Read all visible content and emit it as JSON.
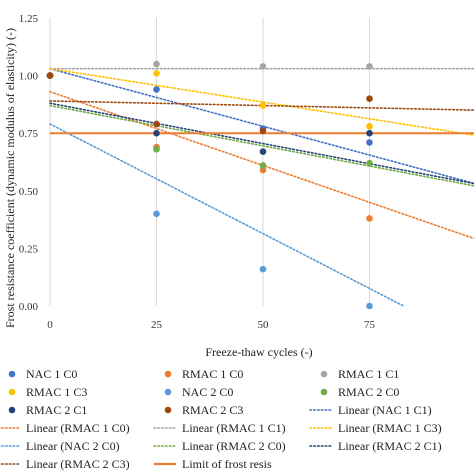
{
  "chart_data": {
    "type": "scatter",
    "xlabel": "Freeze-thaw cycles (-)",
    "ylabel": "Frost resistance coefficient (dynamic modulus of elasticity) (-)",
    "xlim": [
      0,
      100
    ],
    "ylim": [
      0,
      1.25
    ],
    "x_ticks": [
      "0",
      "25",
      "50",
      "75"
    ],
    "y_ticks": [
      "0.00",
      "0.25",
      "0.50",
      "0.75",
      "1.00",
      "1.25"
    ],
    "grid": "vertical",
    "series": [
      {
        "name": "NAC 1 C0",
        "color": "#4472c4",
        "x": [
          0,
          25,
          50,
          75
        ],
        "y": [
          1.0,
          0.94,
          0.77,
          0.71
        ]
      },
      {
        "name": "RMAC 1 C0",
        "color": "#ed7d31",
        "x": [
          0,
          25,
          50,
          75
        ],
        "y": [
          1.0,
          0.69,
          0.59,
          0.38
        ]
      },
      {
        "name": "RMAC 1 C1",
        "color": "#a5a5a5",
        "x": [
          0,
          25,
          50,
          75
        ],
        "y": [
          1.0,
          1.05,
          1.04,
          1.04
        ]
      },
      {
        "name": "RMAC 1 C3",
        "color": "#ffc000",
        "x": [
          0,
          25,
          50,
          75
        ],
        "y": [
          1.0,
          1.01,
          0.87,
          0.78
        ]
      },
      {
        "name": "NAC 2 C0",
        "color": "#5b9bd5",
        "x": [
          0,
          25,
          50,
          75
        ],
        "y": [
          1.0,
          0.4,
          0.16,
          0.0
        ]
      },
      {
        "name": "RMAC 2 C0",
        "color": "#70ad47",
        "x": [
          0,
          25,
          50,
          75
        ],
        "y": [
          1.0,
          0.68,
          0.61,
          0.62
        ]
      },
      {
        "name": "RMAC 2 C1",
        "color": "#264478",
        "x": [
          0,
          25,
          50,
          75
        ],
        "y": [
          1.0,
          0.75,
          0.67,
          0.75
        ]
      },
      {
        "name": "RMAC 2 C3",
        "color": "#9e480e",
        "x": [
          0,
          25,
          50,
          75
        ],
        "y": [
          1.0,
          0.79,
          0.76,
          0.9
        ]
      }
    ],
    "trendlines": [
      {
        "name": "Linear (NAC 1 C1)",
        "color": "#4472c4",
        "start": [
          0,
          1.03
        ],
        "end": [
          100,
          0.53
        ]
      },
      {
        "name": "Linear (RMAC 1 C0)",
        "color": "#ed7d31",
        "start": [
          0,
          0.93
        ],
        "end": [
          100,
          0.29
        ]
      },
      {
        "name": "Linear (RMAC 1 C1)",
        "color": "#a5a5a5",
        "start": [
          0,
          1.03
        ],
        "end": [
          100,
          1.03
        ]
      },
      {
        "name": "Linear (RMAC 1 C3)",
        "color": "#ffc000",
        "start": [
          0,
          1.03
        ],
        "end": [
          100,
          0.74
        ]
      },
      {
        "name": "Linear (NAC 2 C0)",
        "color": "#5b9bd5",
        "start": [
          0,
          0.79
        ],
        "end": [
          83,
          0.0
        ]
      },
      {
        "name": "Linear (RMAC 2 C0)",
        "color": "#70ad47",
        "start": [
          0,
          0.87
        ],
        "end": [
          100,
          0.52
        ]
      },
      {
        "name": "Linear (RMAC 2 C1)",
        "color": "#264478",
        "start": [
          0,
          0.88
        ],
        "end": [
          100,
          0.53
        ]
      },
      {
        "name": "Linear (RMAC 2 C3)",
        "color": "#9e480e",
        "start": [
          0,
          0.89
        ],
        "end": [
          100,
          0.85
        ]
      }
    ],
    "threshold": {
      "name": "Limit of frost resis",
      "color": "#ed7d31",
      "y": 0.75
    },
    "legend": {
      "placement": "bottom",
      "rows": [
        [
          {
            "label": "NAC 1 C0",
            "kind": "dot",
            "color": "#4472c4"
          },
          {
            "label": "RMAC 1 C0",
            "kind": "dot",
            "color": "#ed7d31"
          },
          {
            "label": "RMAC 1 C1",
            "kind": "dot",
            "color": "#a5a5a5"
          }
        ],
        [
          {
            "label": "RMAC 1 C3",
            "kind": "dot",
            "color": "#ffc000"
          },
          {
            "label": "NAC 2 C0",
            "kind": "dot",
            "color": "#5b9bd5"
          },
          {
            "label": "RMAC 2 C0",
            "kind": "dot",
            "color": "#70ad47"
          }
        ],
        [
          {
            "label": "RMAC 2 C1",
            "kind": "dot",
            "color": "#264478"
          },
          {
            "label": "RMAC 2 C3",
            "kind": "dot",
            "color": "#9e480e"
          },
          {
            "label": "Linear (NAC 1 C1)",
            "kind": "dotted",
            "color": "#4472c4"
          }
        ],
        [
          {
            "label": "Linear (RMAC 1 C0)",
            "kind": "dotted",
            "color": "#ed7d31"
          },
          {
            "label": "Linear (RMAC 1 C1)",
            "kind": "dotted",
            "color": "#a5a5a5"
          },
          {
            "label": "Linear (RMAC 1 C3)",
            "kind": "dotted",
            "color": "#ffc000"
          }
        ],
        [
          {
            "label": "Linear (NAC 2 C0)",
            "kind": "dotted",
            "color": "#5b9bd5"
          },
          {
            "label": "Linear (RMAC 2 C0)",
            "kind": "dotted",
            "color": "#70ad47"
          },
          {
            "label": "Linear (RMAC 2 C1)",
            "kind": "dotted",
            "color": "#264478"
          }
        ],
        [
          {
            "label": "Linear (RMAC 2 C3)",
            "kind": "dotted",
            "color": "#9e480e"
          },
          {
            "label": "Limit of frost resis",
            "kind": "solid",
            "color": "#ed7d31"
          }
        ]
      ]
    }
  }
}
